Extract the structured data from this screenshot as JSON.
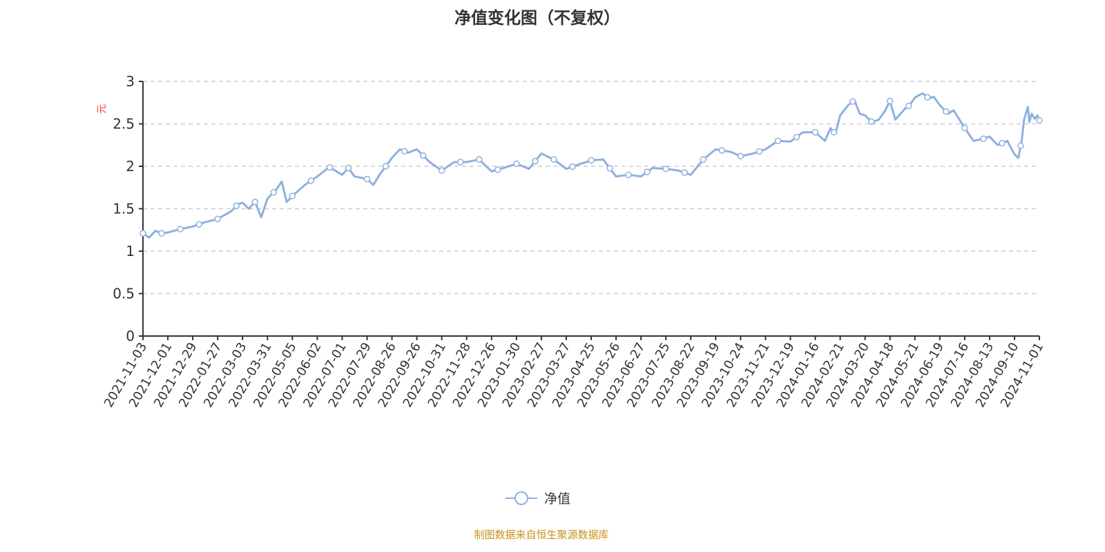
{
  "chart_data": {
    "type": "line",
    "title": "净值变化图（不复权）",
    "ylabel": "元",
    "xlabel": "",
    "ylim": [
      0,
      3
    ],
    "yticks": [
      "0",
      "0.5",
      "1",
      "1.5",
      "2",
      "2.5",
      "3"
    ],
    "grid": "horizontal dashed",
    "legend_position": "bottom",
    "x_tick_labels": [
      "2021-11-03",
      "2021-12-01",
      "2021-12-29",
      "2022-01-27",
      "2022-03-03",
      "2022-03-31",
      "2022-05-05",
      "2022-06-02",
      "2022-07-01",
      "2022-07-29",
      "2022-08-26",
      "2022-09-26",
      "2022-10-31",
      "2022-11-28",
      "2022-12-26",
      "2023-01-30",
      "2023-02-27",
      "2023-03-27",
      "2023-04-25",
      "2023-05-26",
      "2023-06-27",
      "2023-07-25",
      "2023-08-22",
      "2023-09-19",
      "2023-10-24",
      "2023-11-21",
      "2023-12-19",
      "2024-01-16",
      "2024-02-21",
      "2024-03-20",
      "2024-04-18",
      "2024-05-21",
      "2024-06-19",
      "2024-07-16",
      "2024-08-13",
      "2024-09-10",
      "2024-11-01"
    ],
    "series": [
      {
        "name": "净值",
        "color": "#8eb0de",
        "points": [
          [
            "2021-11-03",
            1.21
          ],
          [
            "2021-11-10",
            1.16
          ],
          [
            "2021-11-17",
            1.24
          ],
          [
            "2021-11-24",
            1.21
          ],
          [
            "2021-12-01",
            1.22
          ],
          [
            "2021-12-15",
            1.26
          ],
          [
            "2021-12-29",
            1.29
          ],
          [
            "2022-01-12",
            1.34
          ],
          [
            "2022-01-27",
            1.38
          ],
          [
            "2022-02-15",
            1.47
          ],
          [
            "2022-02-24",
            1.55
          ],
          [
            "2022-03-03",
            1.57
          ],
          [
            "2022-03-10",
            1.5
          ],
          [
            "2022-03-17",
            1.58
          ],
          [
            "2022-03-24",
            1.4
          ],
          [
            "2022-03-31",
            1.62
          ],
          [
            "2022-04-12",
            1.72
          ],
          [
            "2022-04-20",
            1.82
          ],
          [
            "2022-04-27",
            1.58
          ],
          [
            "2022-05-05",
            1.65
          ],
          [
            "2022-05-19",
            1.78
          ],
          [
            "2022-06-02",
            1.88
          ],
          [
            "2022-06-16",
            1.99
          ],
          [
            "2022-07-01",
            1.9
          ],
          [
            "2022-07-08",
            1.98
          ],
          [
            "2022-07-15",
            1.88
          ],
          [
            "2022-07-29",
            1.85
          ],
          [
            "2022-08-05",
            1.78
          ],
          [
            "2022-08-12",
            1.9
          ],
          [
            "2022-08-26",
            2.1
          ],
          [
            "2022-09-05",
            2.2
          ],
          [
            "2022-09-15",
            2.16
          ],
          [
            "2022-09-26",
            2.2
          ],
          [
            "2022-10-14",
            2.05
          ],
          [
            "2022-10-31",
            1.95
          ],
          [
            "2022-11-14",
            2.05
          ],
          [
            "2022-11-28",
            2.05
          ],
          [
            "2022-12-12",
            2.08
          ],
          [
            "2022-12-26",
            1.94
          ],
          [
            "2023-01-12",
            1.98
          ],
          [
            "2023-01-30",
            2.03
          ],
          [
            "2023-02-13",
            1.97
          ],
          [
            "2023-02-27",
            2.15
          ],
          [
            "2023-03-13",
            2.08
          ],
          [
            "2023-03-27",
            1.97
          ],
          [
            "2023-04-10",
            2.02
          ],
          [
            "2023-04-25",
            2.07
          ],
          [
            "2023-05-10",
            2.08
          ],
          [
            "2023-05-26",
            1.88
          ],
          [
            "2023-06-12",
            1.9
          ],
          [
            "2023-06-27",
            1.88
          ],
          [
            "2023-07-10",
            1.98
          ],
          [
            "2023-07-25",
            1.97
          ],
          [
            "2023-08-08",
            1.95
          ],
          [
            "2023-08-22",
            1.9
          ],
          [
            "2023-09-05",
            2.08
          ],
          [
            "2023-09-19",
            2.2
          ],
          [
            "2023-10-10",
            2.17
          ],
          [
            "2023-10-24",
            2.12
          ],
          [
            "2023-11-07",
            2.15
          ],
          [
            "2023-11-21",
            2.2
          ],
          [
            "2023-12-05",
            2.3
          ],
          [
            "2023-12-19",
            2.29
          ],
          [
            "2024-01-02",
            2.4
          ],
          [
            "2024-01-16",
            2.4
          ],
          [
            "2024-01-30",
            2.3
          ],
          [
            "2024-02-07",
            2.45
          ],
          [
            "2024-02-14",
            2.38
          ],
          [
            "2024-02-21",
            2.6
          ],
          [
            "2024-03-01",
            2.72
          ],
          [
            "2024-03-08",
            2.78
          ],
          [
            "2024-03-14",
            2.62
          ],
          [
            "2024-03-20",
            2.6
          ],
          [
            "2024-03-28",
            2.52
          ],
          [
            "2024-04-05",
            2.55
          ],
          [
            "2024-04-12",
            2.65
          ],
          [
            "2024-04-18",
            2.77
          ],
          [
            "2024-04-25",
            2.55
          ],
          [
            "2024-05-08",
            2.68
          ],
          [
            "2024-05-14",
            2.72
          ],
          [
            "2024-05-21",
            2.81
          ],
          [
            "2024-05-30",
            2.86
          ],
          [
            "2024-06-06",
            2.8
          ],
          [
            "2024-06-12",
            2.82
          ],
          [
            "2024-06-19",
            2.72
          ],
          [
            "2024-06-28",
            2.62
          ],
          [
            "2024-07-04",
            2.66
          ],
          [
            "2024-07-16",
            2.45
          ],
          [
            "2024-07-26",
            2.3
          ],
          [
            "2024-08-05",
            2.32
          ],
          [
            "2024-08-13",
            2.35
          ],
          [
            "2024-08-22",
            2.25
          ],
          [
            "2024-09-02",
            2.3
          ],
          [
            "2024-09-10",
            2.14
          ],
          [
            "2024-09-18",
            2.1
          ],
          [
            "2024-09-25",
            2.3
          ],
          [
            "2024-09-30",
            2.55
          ],
          [
            "2024-10-08",
            2.7
          ],
          [
            "2024-10-11",
            2.52
          ],
          [
            "2024-10-16",
            2.62
          ],
          [
            "2024-10-22",
            2.56
          ],
          [
            "2024-10-28",
            2.6
          ],
          [
            "2024-11-01",
            2.54
          ]
        ]
      }
    ]
  },
  "legend": {
    "label": "净值"
  },
  "source": "制图数据来自恒生聚源数据库"
}
